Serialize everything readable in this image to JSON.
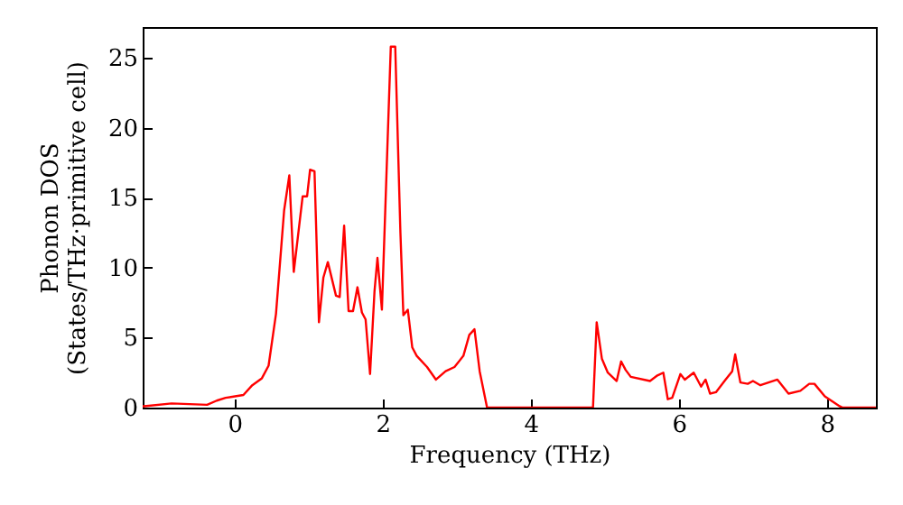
{
  "chart_data": {
    "type": "line",
    "xlabel": "Frequency (THz)",
    "ylabel": "Phonon DOS\n(States/THz·primitive cell)",
    "x": [
      -1.24,
      -1.22,
      -0.85,
      -0.37,
      -0.24,
      -0.12,
      0.12,
      0.24,
      0.37,
      0.46,
      0.56,
      0.67,
      0.74,
      0.8,
      0.92,
      0.98,
      1.02,
      1.08,
      1.14,
      1.2,
      1.26,
      1.37,
      1.42,
      1.48,
      1.54,
      1.6,
      1.66,
      1.72,
      1.77,
      1.83,
      1.89,
      1.93,
      1.99,
      2.11,
      2.17,
      2.24,
      2.28,
      2.34,
      2.4,
      2.46,
      2.6,
      2.72,
      2.85,
      2.97,
      3.09,
      3.17,
      3.24,
      3.31,
      3.41,
      4.84,
      4.89,
      4.96,
      5.04,
      5.16,
      5.22,
      5.28,
      5.35,
      5.61,
      5.71,
      5.79,
      5.85,
      5.91,
      6.02,
      6.08,
      6.2,
      6.3,
      6.36,
      6.42,
      6.5,
      6.63,
      6.72,
      6.76,
      6.83,
      6.93,
      7.0,
      7.1,
      7.33,
      7.48,
      7.64,
      7.76,
      7.83,
      7.97,
      8.17,
      8.21,
      8.66
    ],
    "series": [
      {
        "color": "#ff0000",
        "values": [
          0.1,
          0.1,
          0.3,
          0.2,
          0.5,
          0.7,
          0.9,
          1.6,
          2.1,
          3.0,
          6.7,
          14.1,
          16.6,
          9.7,
          15.1,
          15.1,
          17.0,
          16.9,
          6.1,
          9.3,
          10.4,
          8.0,
          7.9,
          13.0,
          6.9,
          6.9,
          8.6,
          6.8,
          6.3,
          2.4,
          8.3,
          10.7,
          7.0,
          25.8,
          25.8,
          12.5,
          6.6,
          7.0,
          4.3,
          3.7,
          2.9,
          2.0,
          2.6,
          2.9,
          3.7,
          5.2,
          5.6,
          2.6,
          0,
          0,
          6.1,
          3.5,
          2.5,
          1.9,
          3.3,
          2.7,
          2.2,
          1.9,
          2.3,
          2.5,
          0.6,
          0.7,
          2.4,
          2.0,
          2.5,
          1.5,
          2.0,
          1.0,
          1.1,
          2.0,
          2.6,
          3.8,
          1.8,
          1.7,
          1.9,
          1.6,
          2.0,
          1.0,
          1.2,
          1.7,
          1.7,
          0.8,
          0.1,
          0,
          0
        ]
      }
    ],
    "xlim": [
      -1.24,
      8.66
    ],
    "ylim": [
      0,
      27.2
    ],
    "xticks": [
      0,
      2,
      4,
      6,
      8
    ],
    "yticks": [
      0,
      5,
      10,
      15,
      20,
      25
    ],
    "grid": false,
    "marker": "none",
    "line_style": "solid"
  }
}
